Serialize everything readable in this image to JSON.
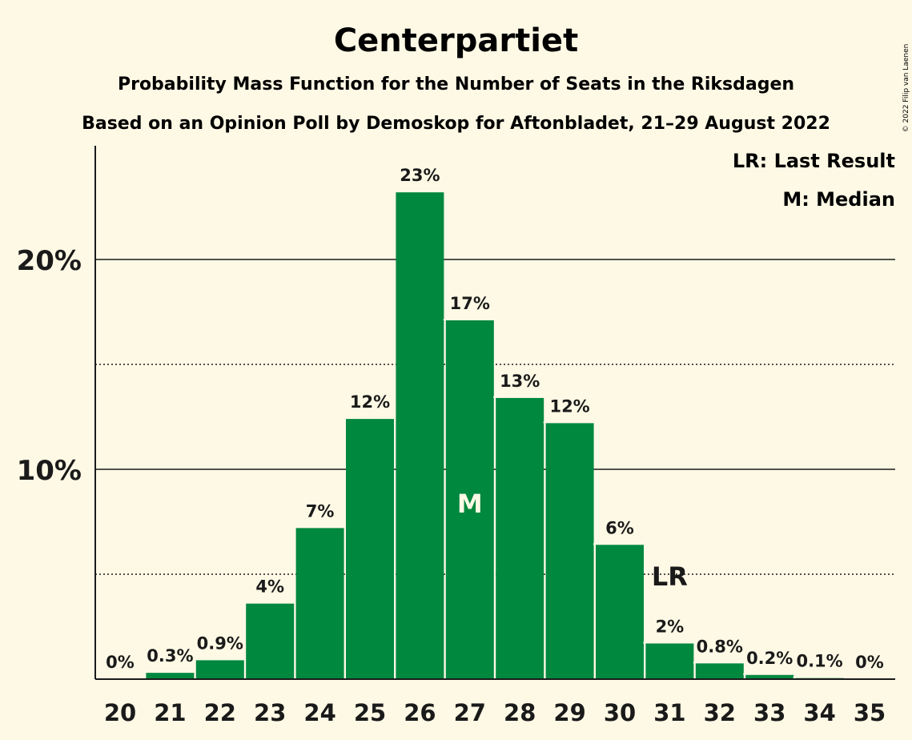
{
  "title": "Centerpartiet",
  "subtitle1": "Probability Mass Function for the Number of Seats in the Riksdagen",
  "subtitle2": "Based on an Opinion Poll by Demoskop for Aftonbladet, 21–29 August 2022",
  "copyright": "© 2022 Filip van Laenen",
  "legend": {
    "lr": "LR: Last Result",
    "m": "M: Median"
  },
  "colors": {
    "bar": "#00883f",
    "background": "#fef9e5",
    "text": "#1a1a1a"
  },
  "chart_data": {
    "type": "bar",
    "categories": [
      "20",
      "21",
      "22",
      "23",
      "24",
      "25",
      "26",
      "27",
      "28",
      "29",
      "30",
      "31",
      "32",
      "33",
      "34",
      "35"
    ],
    "values": [
      0,
      0.3,
      0.9,
      3.6,
      7.2,
      12.4,
      23.2,
      17.1,
      13.4,
      12.2,
      6.4,
      1.7,
      0.75,
      0.2,
      0.05,
      0
    ],
    "labels": [
      "0%",
      "0.3%",
      "0.9%",
      "4%",
      "7%",
      "12%",
      "23%",
      "17%",
      "13%",
      "12%",
      "6%",
      "2%",
      "0.8%",
      "0.2%",
      "0.1%",
      "0%"
    ],
    "yticks": [
      {
        "value": 10,
        "label": "10%"
      },
      {
        "value": 20,
        "label": "20%"
      }
    ],
    "minor_gridlines": [
      5,
      15
    ],
    "ylim": [
      0,
      25.3
    ],
    "median": {
      "category": "27",
      "label": "M"
    },
    "last_result": {
      "category": "31",
      "label": "LR"
    }
  }
}
